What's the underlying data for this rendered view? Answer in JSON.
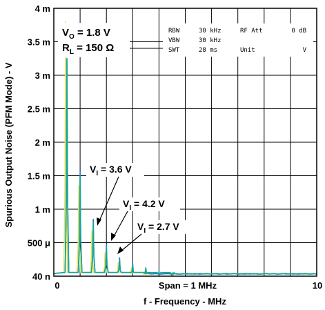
{
  "chart_data": {
    "type": "line",
    "xlabel": "f - Frequency - MHz",
    "ylabel": "Spurious Output Noise (PFM Mode) - V",
    "xlim": [
      0,
      10
    ],
    "ylim_levels": 8,
    "x_tick_labels": [
      "0",
      "10"
    ],
    "y_tick_labels": [
      "40 n",
      "500 μ",
      "1 m",
      "1.5 m",
      "2 m",
      "2.5 m",
      "3 m",
      "3.5 m",
      "4 m"
    ],
    "grid": true,
    "span_label": "Span = 1 MHz",
    "conditions": {
      "vo_main": "V",
      "vo_sub": "O",
      "vo_value": " = 1.8 V",
      "rl_main": "R",
      "rl_sub": "L",
      "rl_value": " = 150 Ω"
    },
    "instrument": {
      "rows": [
        [
          "RBW",
          "30 kHz",
          "RF Att",
          "0 dB"
        ],
        [
          "VBW",
          "30 kHz",
          "",
          ""
        ],
        [
          "SWT",
          "28 ms",
          "Unit",
          "V"
        ]
      ]
    },
    "series": [
      {
        "name": "V_I = 3.6 V",
        "label_main": "V",
        "label_sub": "I",
        "label_value": " = 3.6 V",
        "color": "#12a89a",
        "peaks": [
          [
            0.5,
            6.45
          ],
          [
            1.0,
            3.0
          ],
          [
            1.5,
            1.6
          ],
          [
            2.0,
            0.9
          ],
          [
            2.5,
            0.5
          ],
          [
            3.0,
            0.35
          ],
          [
            3.5,
            0.22
          ],
          [
            4.0,
            0.15
          ],
          [
            4.5,
            0.1
          ]
        ]
      },
      {
        "name": "V_I = 4.2 V",
        "label_main": "V",
        "label_sub": "I",
        "label_value": " = 4.2 V",
        "color": "#1f7ad0",
        "peaks": [
          [
            0.5,
            6.5
          ],
          [
            1.0,
            3.1
          ],
          [
            1.5,
            1.7
          ],
          [
            2.0,
            0.95
          ],
          [
            2.5,
            0.55
          ],
          [
            3.0,
            0.38
          ],
          [
            3.5,
            0.25
          ]
        ]
      },
      {
        "name": "V_I = 2.7 V",
        "label_main": "V",
        "label_sub": "I",
        "label_value": " = 2.7 V",
        "color": "#e8e060",
        "peaks": [
          [
            0.45,
            7.6
          ],
          [
            0.95,
            2.7
          ],
          [
            1.45,
            1.35
          ],
          [
            1.95,
            0.7
          ],
          [
            2.45,
            0.4
          ],
          [
            2.95,
            0.25
          ],
          [
            3.45,
            0.15
          ]
        ]
      }
    ]
  }
}
